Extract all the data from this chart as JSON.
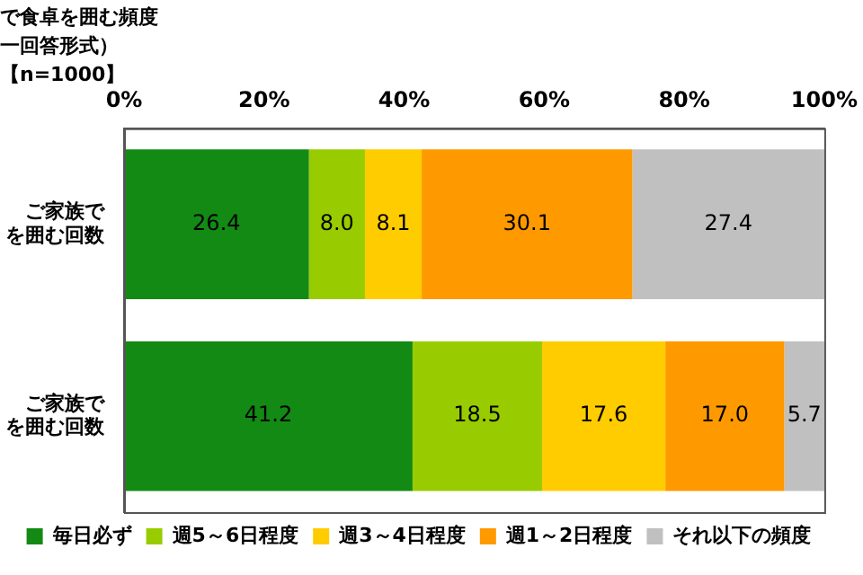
{
  "chart_data": {
    "type": "bar",
    "orientation": "horizontal",
    "stacked": true,
    "title": "で食卓を囲む頻度",
    "subtitle": "一回答形式）",
    "annotations": [
      "【n=1000】"
    ],
    "categories": [
      "ご家族でを囲む回数",
      "ご家族でを囲む回数"
    ],
    "series": [
      {
        "name": "毎日必ず",
        "color": "#138a13",
        "values": [
          26.4,
          41.2
        ],
        "value_labels": [
          "26.4",
          "41.2"
        ]
      },
      {
        "name": "週5～6日程度",
        "color": "#99cc00",
        "values": [
          8.0,
          18.5
        ],
        "value_labels": [
          "8.0",
          "18.5"
        ]
      },
      {
        "name": "週3～4日程度",
        "color": "#ffcc00",
        "values": [
          8.1,
          17.6
        ],
        "value_labels": [
          "8.1",
          "17.6"
        ]
      },
      {
        "name": "週1～2日程度",
        "color": "#ff9900",
        "values": [
          30.1,
          17.0
        ],
        "value_labels": [
          "30.1",
          "17.0"
        ]
      },
      {
        "name": "それ以下の頻度",
        "color": "#c0c0c0",
        "values": [
          27.4,
          5.7
        ],
        "value_labels": [
          "27.4",
          "5.7"
        ]
      }
    ],
    "xlim": [
      0,
      100
    ],
    "xticks": [
      {
        "value": 0,
        "label": "0%"
      },
      {
        "value": 20,
        "label": "20%"
      },
      {
        "value": 40,
        "label": "40%"
      },
      {
        "value": 60,
        "label": "60%"
      },
      {
        "value": 80,
        "label": "80%"
      },
      {
        "value": 100,
        "label": "100%"
      }
    ],
    "legend": "bottom",
    "grid": false
  }
}
